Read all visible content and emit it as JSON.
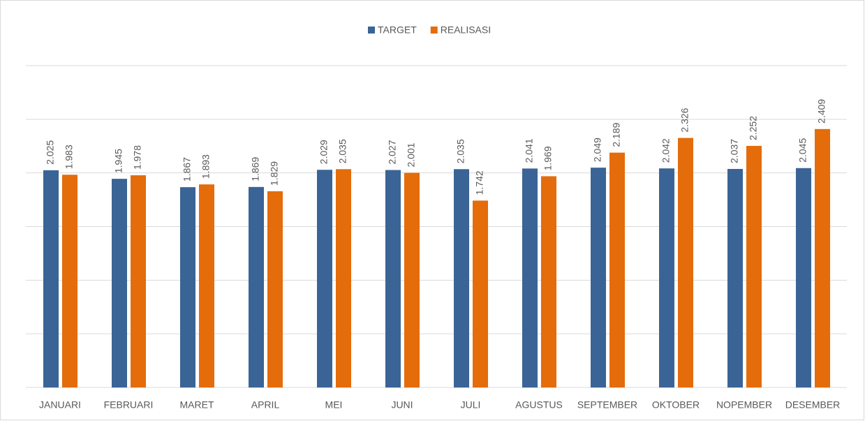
{
  "chart_data": {
    "type": "bar",
    "categories": [
      "JANUARI",
      "FEBRUARI",
      "MARET",
      "APRIL",
      "MEI",
      "JUNI",
      "JULI",
      "AGUSTUS",
      "SEPTEMBER",
      "OKTOBER",
      "NOPEMBER",
      "DESEMBER"
    ],
    "series": [
      {
        "name": "TARGET",
        "color": "#3a6496",
        "values": [
          2.025,
          1.945,
          1.867,
          1.869,
          2.029,
          2.027,
          2.035,
          2.041,
          2.049,
          2.042,
          2.037,
          2.045
        ]
      },
      {
        "name": "REALISASI",
        "color": "#e46c0a",
        "values": [
          1.983,
          1.978,
          1.893,
          1.829,
          2.035,
          2.001,
          1.742,
          1.969,
          2.189,
          2.326,
          2.252,
          2.409
        ]
      }
    ],
    "ylim": [
      0,
      3
    ],
    "yticks": [
      0,
      0.5,
      1,
      1.5,
      2,
      2.5,
      3
    ],
    "grid": true,
    "legend": "top"
  }
}
